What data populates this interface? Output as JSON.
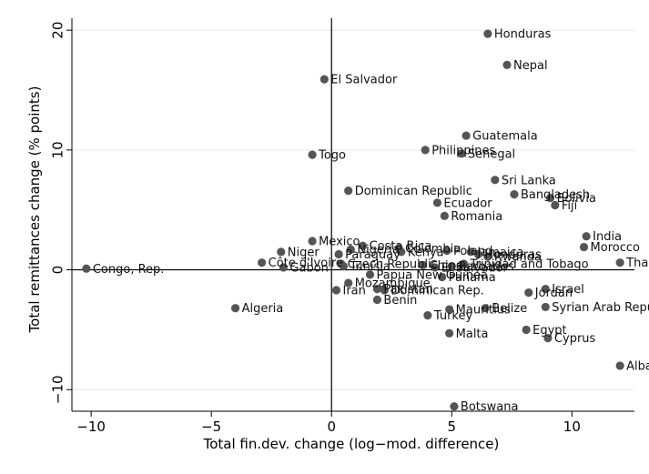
{
  "chart_data": {
    "type": "scatter",
    "xlabel": "Total fin.dev. change (log−mod. difference)",
    "ylabel": "Total remittances change (% points)",
    "xlim": [
      -10.8,
      12.6
    ],
    "ylim": [
      -11.8,
      21.0
    ],
    "xticks": [
      -10,
      -5,
      0,
      5,
      10
    ],
    "yticks": [
      -10,
      0,
      10,
      20
    ],
    "xtick_labels": [
      "−10",
      "−5",
      "0",
      "5",
      "10"
    ],
    "ytick_labels": [
      "−10",
      "0",
      "10",
      "20"
    ],
    "grid": "horizontal",
    "reference_lines": {
      "x": 0,
      "y": 0
    },
    "marker_color": "#555555",
    "points": [
      {
        "label": "Honduras",
        "x": 6.5,
        "y": 19.7
      },
      {
        "label": "Nepal",
        "x": 7.3,
        "y": 17.1
      },
      {
        "label": "El Salvador",
        "x": -0.3,
        "y": 15.9
      },
      {
        "label": "Guatemala",
        "x": 5.6,
        "y": 11.2
      },
      {
        "label": "Philippines",
        "x": 3.9,
        "y": 10.0
      },
      {
        "label": "Senegal",
        "x": 5.4,
        "y": 9.7
      },
      {
        "label": "Togo",
        "x": -0.8,
        "y": 9.6
      },
      {
        "label": "Sri Lanka",
        "x": 6.8,
        "y": 7.5
      },
      {
        "label": "Bangladesh",
        "x": 7.6,
        "y": 6.3
      },
      {
        "label": "Bolivia",
        "x": 9.1,
        "y": 6.0
      },
      {
        "label": "Fiji",
        "x": 9.3,
        "y": 5.4
      },
      {
        "label": "Dominican Republic",
        "x": 0.7,
        "y": 6.6
      },
      {
        "label": "Ecuador",
        "x": 4.4,
        "y": 5.6
      },
      {
        "label": "Romania",
        "x": 4.7,
        "y": 4.5
      },
      {
        "label": "India",
        "x": 10.6,
        "y": 2.8
      },
      {
        "label": "Morocco",
        "x": 10.5,
        "y": 1.9
      },
      {
        "label": "Thailand",
        "x": 12.0,
        "y": 0.6
      },
      {
        "label": "Mexico",
        "x": -0.8,
        "y": 2.4
      },
      {
        "label": "Costa Rica",
        "x": 1.3,
        "y": 2.0
      },
      {
        "label": "Niger",
        "x": -2.1,
        "y": 1.5
      },
      {
        "label": "Nigeria",
        "x": 0.8,
        "y": 1.7
      },
      {
        "label": "Paraguay",
        "x": 0.3,
        "y": 1.3
      },
      {
        "label": "Kenya",
        "x": 2.9,
        "y": 1.5
      },
      {
        "label": "Colombia",
        "x": 2.8,
        "y": 1.8
      },
      {
        "label": "Poland",
        "x": 4.8,
        "y": 1.6
      },
      {
        "label": "Jamaica",
        "x": 5.8,
        "y": 1.5
      },
      {
        "label": "Honduras",
        "x": 6.1,
        "y": 1.3
      },
      {
        "label": "Rwanda",
        "x": 6.5,
        "y": 1.1
      },
      {
        "label": "Côte d'Ivoire",
        "x": -2.9,
        "y": 0.6
      },
      {
        "label": "Czech Republic",
        "x": 0.4,
        "y": 0.5
      },
      {
        "label": "Tunisia",
        "x": 0.5,
        "y": 0.3
      },
      {
        "label": "Gabon",
        "x": -2.0,
        "y": 0.2
      },
      {
        "label": "China",
        "x": 3.8,
        "y": 0.4
      },
      {
        "label": "El Salvador",
        "x": 4.3,
        "y": 0.2
      },
      {
        "label": "Trinidad and Tobago",
        "x": 5.5,
        "y": 0.5
      },
      {
        "label": "Barbados",
        "x": 5.0,
        "y": 0.3
      },
      {
        "label": "Papua New Guinea",
        "x": 1.6,
        "y": -0.4
      },
      {
        "label": "Panama",
        "x": 4.6,
        "y": -0.6
      },
      {
        "label": "Congo, Rep.",
        "x": -10.2,
        "y": 0.1
      },
      {
        "label": "Mozambique",
        "x": 0.7,
        "y": -1.1
      },
      {
        "label": "Iran",
        "x": 0.2,
        "y": -1.7
      },
      {
        "label": "Pakistan",
        "x": 1.9,
        "y": -1.6
      },
      {
        "label": "Dominican Rep.",
        "x": 2.2,
        "y": -1.7
      },
      {
        "label": "Benin",
        "x": 1.9,
        "y": -2.5
      },
      {
        "label": "Israel",
        "x": 8.9,
        "y": -1.6
      },
      {
        "label": "Jordan",
        "x": 8.2,
        "y": -1.9
      },
      {
        "label": "Algeria",
        "x": -4.0,
        "y": -3.2
      },
      {
        "label": "Mauritius",
        "x": 4.9,
        "y": -3.3
      },
      {
        "label": "Belize",
        "x": 6.4,
        "y": -3.2
      },
      {
        "label": "Syrian Arab Republic",
        "x": 8.9,
        "y": -3.1
      },
      {
        "label": "Turkey",
        "x": 4.0,
        "y": -3.8
      },
      {
        "label": "Malta",
        "x": 4.9,
        "y": -5.3
      },
      {
        "label": "Egypt",
        "x": 8.1,
        "y": -5.0
      },
      {
        "label": "Cyprus",
        "x": 9.0,
        "y": -5.7
      },
      {
        "label": "Albania",
        "x": 12.0,
        "y": -8.0
      },
      {
        "label": "Botswana",
        "x": 5.1,
        "y": -11.4
      }
    ]
  }
}
